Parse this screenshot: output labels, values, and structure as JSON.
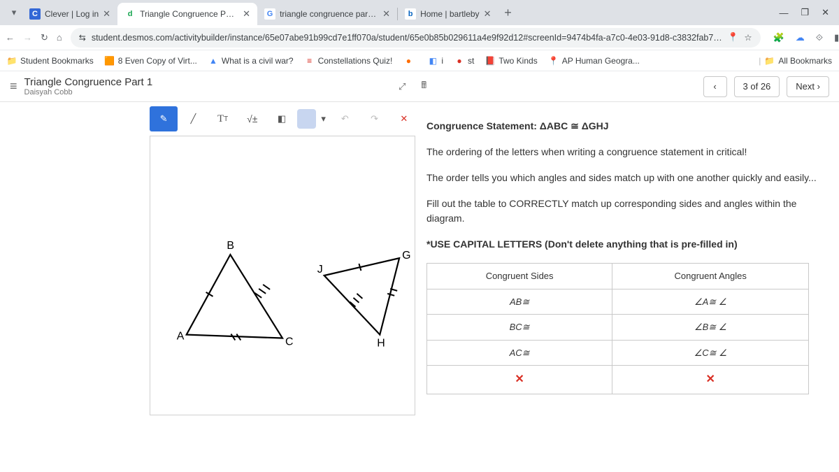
{
  "tabs": [
    {
      "favicon_text": "C",
      "favicon_bg": "#3367d6",
      "favicon_fg": "#ffffff",
      "title": "Clever | Log in"
    },
    {
      "favicon_text": "d",
      "favicon_bg": "#ffffff",
      "favicon_fg": "#14a44d",
      "title": "Triangle Congruence Part 1",
      "active": true
    },
    {
      "favicon_text": "G",
      "favicon_bg": "#ffffff",
      "favicon_fg": "#4285f4",
      "title": "triangle congruence part 1 ans"
    },
    {
      "favicon_text": "b",
      "favicon_bg": "#ffffff",
      "favicon_fg": "#0a66c2",
      "title": "Home | bartleby"
    }
  ],
  "url": "student.desmos.com/activitybuilder/instance/65e07abe91b99cd7e1ff070a/student/65e0b85b029611a4e9f92d12#screenId=9474b4fa-a7c0-4e03-91d8-c3832fab7…",
  "bookmarks": {
    "label": "Student Bookmarks",
    "items": [
      {
        "icon": "🟧",
        "text": "8 Even Copy of Virt..."
      },
      {
        "icon": "▲",
        "text": "What is a civil war?",
        "color": "#4285f4"
      },
      {
        "icon": "≡",
        "text": "Constellations Quiz!",
        "color": "#d93025"
      },
      {
        "icon": "●",
        "text": "",
        "color": "#ff6d00"
      },
      {
        "icon": "◧",
        "text": "i",
        "color": "#4285f4"
      },
      {
        "icon": "●",
        "text": "st",
        "color": "#d93025"
      },
      {
        "icon": "📕",
        "text": "Two Kinds"
      },
      {
        "icon": "📍",
        "text": "AP Human Geogra...",
        "color": "#d93025"
      }
    ],
    "all": "All Bookmarks"
  },
  "activity": {
    "title": "Triangle Congruence Part 1",
    "student": "Daisyah Cobb"
  },
  "nav": {
    "counter": "3 of 26",
    "next": "Next",
    "prev": "‹"
  },
  "instructions": {
    "heading": "Congruence Statement: ΔABC ≅ ΔGHJ",
    "p1": "The ordering of the letters when writing a congruence statement in critical!",
    "p2": "The order tells you which angles and sides match up with one another quickly and easily...",
    "p3": "Fill out the table to CORRECTLY match up corresponding sides and angles within the diagram.",
    "p4": "*USE CAPITAL LETTERS (Don't delete anything that is pre-filled in)"
  },
  "table": {
    "headers": [
      "Congruent Sides",
      "Congruent Angles"
    ],
    "rows": [
      [
        "AB≅",
        "∠A≅ ∠"
      ],
      [
        "BC≅",
        "∠B≅ ∠"
      ],
      [
        "AC≅",
        "∠C≅ ∠"
      ]
    ]
  },
  "triangles": {
    "t1": {
      "A": [
        52,
        285
      ],
      "B": [
        115,
        170
      ],
      "C": [
        190,
        290
      ],
      "labels": {
        "A": "A",
        "B": "B",
        "C": "C"
      }
    },
    "t2": {
      "J": [
        250,
        200
      ],
      "G": [
        358,
        175
      ],
      "H": [
        330,
        285
      ],
      "labels": {
        "J": "J",
        "G": "G",
        "H": "H"
      }
    }
  }
}
